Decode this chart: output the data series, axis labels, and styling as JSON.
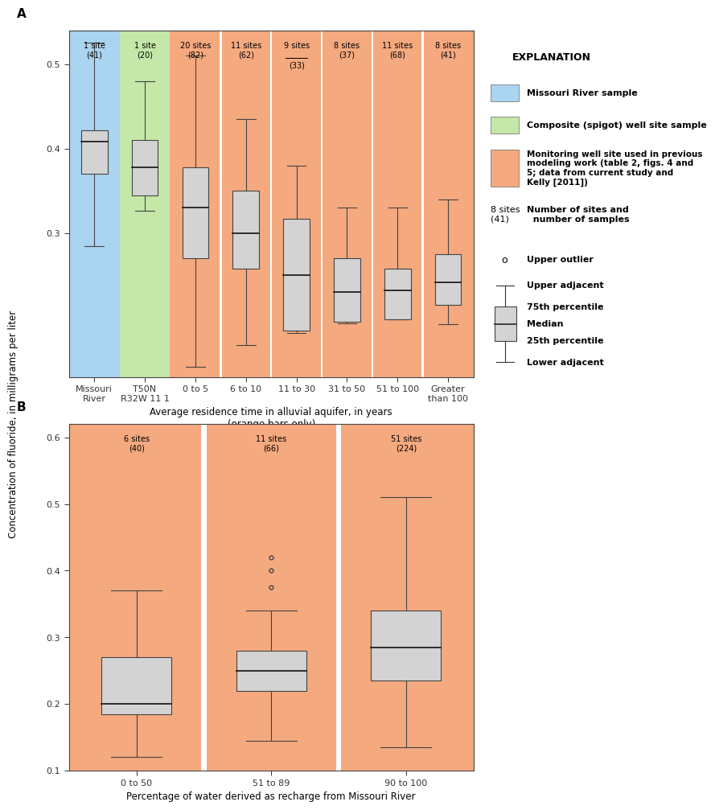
{
  "panel_A": {
    "title": "A",
    "xlabel": "Average residence time in alluvial aquifer, in years\n(orange bars only)",
    "ylabel": "Concentration of fluoride, in milligrams per liter",
    "ylim": [
      0.13,
      0.54
    ],
    "yticks": [
      0.3,
      0.4,
      0.5
    ],
    "categories": [
      "Missouri\nRiver",
      "T50N\nR32W 11 1",
      "0 to 5",
      "6 to 10",
      "11 to 30",
      "31 to 50",
      "51 to 100",
      "Greater\nthan 100"
    ],
    "labels": [
      "1 site\n(41)",
      "1 site\n(20)",
      "20 sites\n(82)",
      "11 sites\n(62)",
      "9 sites\n(33)",
      "8 sites\n(37)",
      "11 sites\n(68)",
      "8 sites\n(41)"
    ],
    "underline_label": [
      false,
      false,
      false,
      false,
      true,
      false,
      false,
      false
    ],
    "bg_colors": [
      "#aad4f0",
      "#c5e8a8",
      "#f5a97f",
      "#ffffff",
      "#f5a97f",
      "#ffffff",
      "#f5a97f",
      "#ffffff",
      "#f5a97f",
      "#ffffff",
      "#f5a97f",
      "#ffffff",
      "#f5a97f"
    ],
    "col_bg": [
      "#aad4f0",
      "#c5e8a8",
      "#f5a97f",
      "#f5a97f",
      "#f5a97f",
      "#f5a97f",
      "#f5a97f",
      "#f5a97f"
    ],
    "boxes": [
      {
        "q1": 0.37,
        "median": 0.408,
        "q3": 0.422,
        "lower": 0.285,
        "upper": 0.525
      },
      {
        "q1": 0.345,
        "median": 0.378,
        "q3": 0.41,
        "lower": 0.327,
        "upper": 0.48
      },
      {
        "q1": 0.27,
        "median": 0.33,
        "q3": 0.378,
        "lower": 0.142,
        "upper": 0.51
      },
      {
        "q1": 0.258,
        "median": 0.3,
        "q3": 0.35,
        "lower": 0.168,
        "upper": 0.435
      },
      {
        "q1": 0.185,
        "median": 0.25,
        "q3": 0.317,
        "lower": 0.182,
        "upper": 0.38
      },
      {
        "q1": 0.195,
        "median": 0.23,
        "q3": 0.27,
        "lower": 0.193,
        "upper": 0.33
      },
      {
        "q1": 0.198,
        "median": 0.232,
        "q3": 0.258,
        "lower": 0.198,
        "upper": 0.33
      },
      {
        "q1": 0.215,
        "median": 0.242,
        "q3": 0.275,
        "lower": 0.192,
        "upper": 0.34
      }
    ],
    "outliers": [
      [],
      [],
      [],
      [],
      [],
      [],
      [],
      []
    ]
  },
  "panel_B": {
    "title": "B",
    "xlabel": "Percentage of water derived as recharge from Missouri River",
    "ylim": [
      0.1,
      0.62
    ],
    "yticks": [
      0.1,
      0.2,
      0.3,
      0.4,
      0.5,
      0.6
    ],
    "categories": [
      "0 to 50",
      "51 to 89",
      "90 to 100"
    ],
    "labels": [
      "6 sites\n(40)",
      "11 sites\n(66)",
      "51 sites\n(224)"
    ],
    "col_bg": [
      "#f5a97f",
      "#f5a97f",
      "#f5a97f"
    ],
    "boxes": [
      {
        "q1": 0.185,
        "median": 0.2,
        "q3": 0.27,
        "lower": 0.12,
        "upper": 0.37
      },
      {
        "q1": 0.22,
        "median": 0.25,
        "q3": 0.28,
        "lower": 0.145,
        "upper": 0.34
      },
      {
        "q1": 0.235,
        "median": 0.285,
        "q3": 0.34,
        "lower": 0.135,
        "upper": 0.51
      }
    ],
    "outliers": [
      [],
      [
        0.42,
        0.4,
        0.375
      ],
      []
    ]
  },
  "legend": {
    "title": "EXPLANATION",
    "blue_label": "Missouri River sample",
    "green_label": "Composite (spigot) well site sample",
    "orange_label": "Monitoring well site used in previous\nmodeling work (table 2, figs. 4 and\n5; data from current study and\nKelly [2011])",
    "sites_label": "Number of sites and\n  number of samples",
    "outlier_label": "Upper outlier",
    "upper_adj_label": "Upper adjacent",
    "p75_label": "75th percentile",
    "median_label": "Median",
    "p25_label": "25th percentile",
    "lower_adj_label": "Lower adjacent",
    "blue_color": "#aad4f0",
    "green_color": "#c5e8a8",
    "orange_color": "#f5a97f"
  }
}
